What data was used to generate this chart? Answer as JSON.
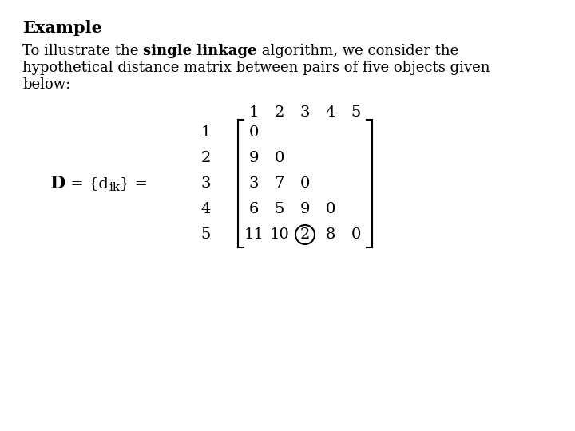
{
  "title": "Example",
  "row_labels": [
    "1",
    "2",
    "3",
    "4",
    "5"
  ],
  "col_labels": [
    "1",
    "2",
    "3",
    "4",
    "5"
  ],
  "matrix": [
    [
      "0",
      "",
      "",
      "",
      ""
    ],
    [
      "9",
      "0",
      "",
      "",
      ""
    ],
    [
      "3",
      "7",
      "0",
      "",
      ""
    ],
    [
      "6",
      "5",
      "9",
      "0",
      ""
    ],
    [
      "11",
      "10",
      "2",
      "8",
      "0"
    ]
  ],
  "circled_row": 4,
  "circled_col": 2,
  "background_color": "#ffffff",
  "text_color": "#000000",
  "font_size_title": 15,
  "font_size_body": 13,
  "font_size_matrix": 14
}
